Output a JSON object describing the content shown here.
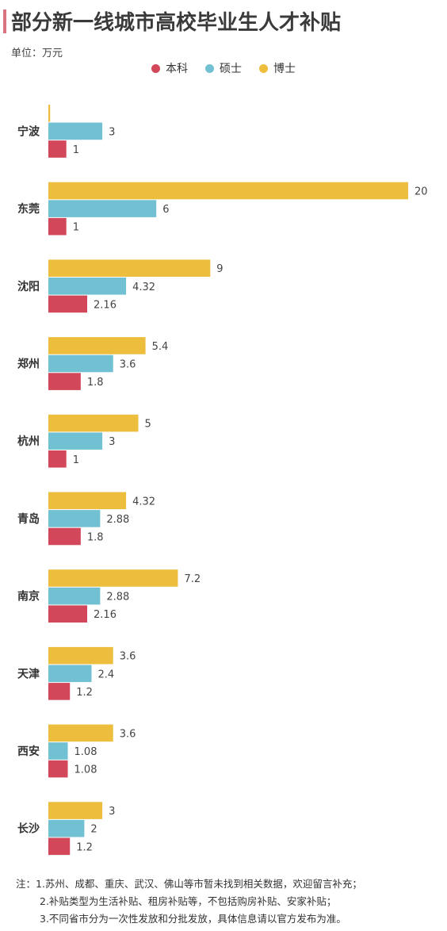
{
  "header": {
    "title": "部分新一线城市高校毕业生人才补贴",
    "unit": "单位：万元",
    "accent_color": "#d9737f"
  },
  "chart_data": {
    "type": "bar",
    "orientation": "horizontal",
    "categories": [
      "宁波",
      "东莞",
      "沈阳",
      "郑州",
      "杭州",
      "青岛",
      "南京",
      "天津",
      "西安",
      "长沙"
    ],
    "series": [
      {
        "name": "博士",
        "color": "#edbd3e",
        "values": [
          0.1,
          20,
          9,
          5.4,
          5,
          4.32,
          7.2,
          3.6,
          3.6,
          3
        ],
        "labels": [
          "",
          "20",
          "9",
          "5.4",
          "5",
          "4.32",
          "7.2",
          "3.6",
          "3.6",
          "3"
        ]
      },
      {
        "name": "硕士",
        "color": "#72c1d3",
        "values": [
          3,
          6,
          4.32,
          3.6,
          3,
          2.88,
          2.88,
          2.4,
          1.08,
          2
        ],
        "labels": [
          "3",
          "6",
          "4.32",
          "3.6",
          "3",
          "2.88",
          "2.88",
          "2.4",
          "1.08",
          "2"
        ]
      },
      {
        "name": "本科",
        "color": "#d2475a",
        "values": [
          1,
          1,
          2.16,
          1.8,
          1,
          1.8,
          2.16,
          1.2,
          1.08,
          1.2
        ],
        "labels": [
          "1",
          "1",
          "2.16",
          "1.8",
          "1",
          "1.8",
          "2.16",
          "1.2",
          "1.08",
          "1.2"
        ]
      }
    ],
    "legend_order": [
      "本科",
      "硕士",
      "博士"
    ],
    "legend_position": "top-center",
    "xlim": [
      0,
      20
    ],
    "grid": false
  },
  "notes": [
    "注：1.苏州、成都、重庆、武汉、佛山等市暂未找到相关数据，欢迎留言补充；",
    "2.补贴类型为生活补贴、租房补贴等，不包括购房补贴、安家补贴；",
    "3.不同省市分为一次性发放和分批发放，具体信息请以官方发布为准。"
  ]
}
